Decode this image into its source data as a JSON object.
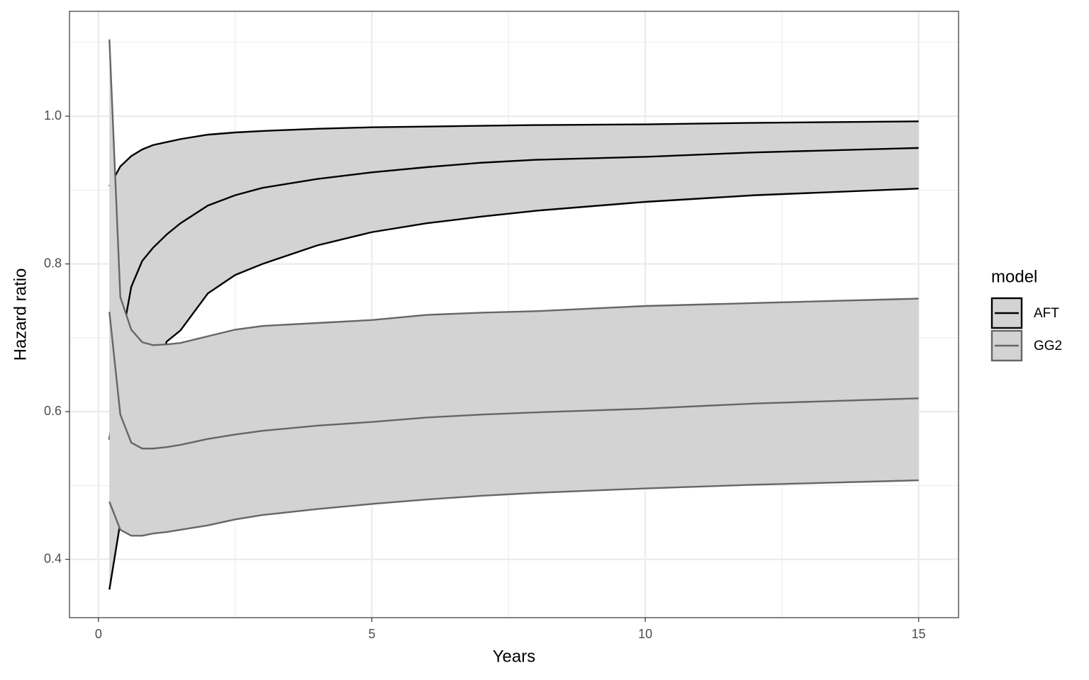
{
  "chart_data": {
    "type": "ribbon-line",
    "x_label": "Years",
    "y_label": "Hazard ratio",
    "legend_title": "model",
    "legend_position": "right",
    "grid": true,
    "band_color": "#d3d3d3",
    "x": [
      0.2,
      0.4,
      0.6,
      0.8,
      1.0,
      1.25,
      1.5,
      2,
      2.5,
      3,
      4,
      5,
      6,
      7,
      8,
      10,
      12,
      15
    ],
    "series": [
      {
        "name": "AFT",
        "color": "#000000",
        "values": [
          0.562,
          0.687,
          0.769,
          0.804,
          0.822,
          0.84,
          0.855,
          0.879,
          0.893,
          0.903,
          0.915,
          0.924,
          0.931,
          0.937,
          0.941,
          0.945,
          0.951,
          0.957
        ],
        "lower": [
          0.359,
          0.45,
          0.53,
          0.6,
          0.65,
          0.695,
          0.71,
          0.76,
          0.785,
          0.8,
          0.825,
          0.843,
          0.855,
          0.864,
          0.872,
          0.884,
          0.893,
          0.902
        ],
        "upper": [
          0.905,
          0.932,
          0.946,
          0.955,
          0.961,
          0.965,
          0.969,
          0.975,
          0.978,
          0.98,
          0.983,
          0.985,
          0.986,
          0.987,
          0.988,
          0.989,
          0.991,
          0.993
        ]
      },
      {
        "name": "GG2",
        "color": "#666666",
        "values": [
          0.735,
          0.596,
          0.558,
          0.55,
          0.55,
          0.552,
          0.555,
          0.563,
          0.569,
          0.574,
          0.581,
          0.586,
          0.592,
          0.596,
          0.599,
          0.604,
          0.611,
          0.618
        ],
        "lower": [
          0.478,
          0.44,
          0.432,
          0.432,
          0.435,
          0.437,
          0.44,
          0.446,
          0.454,
          0.46,
          0.468,
          0.475,
          0.481,
          0.486,
          0.49,
          0.496,
          0.501,
          0.507
        ],
        "upper": [
          1.104,
          0.755,
          0.711,
          0.694,
          0.69,
          0.691,
          0.693,
          0.702,
          0.711,
          0.716,
          0.72,
          0.724,
          0.731,
          0.734,
          0.736,
          0.743,
          0.747,
          0.753
        ]
      }
    ],
    "xlim": [
      -0.53,
      15.73
    ],
    "ylim": [
      0.321,
      1.142
    ],
    "xticks": [
      0,
      5,
      10,
      15
    ],
    "yticks": [
      0.4,
      0.6,
      0.8,
      {
        "value": 1.0,
        "label": "1.0"
      }
    ],
    "x_minor_ticks": [
      2.5,
      7.5,
      12.5
    ],
    "y_minor_ticks": [
      0.5,
      0.7,
      0.9,
      1.1
    ]
  }
}
